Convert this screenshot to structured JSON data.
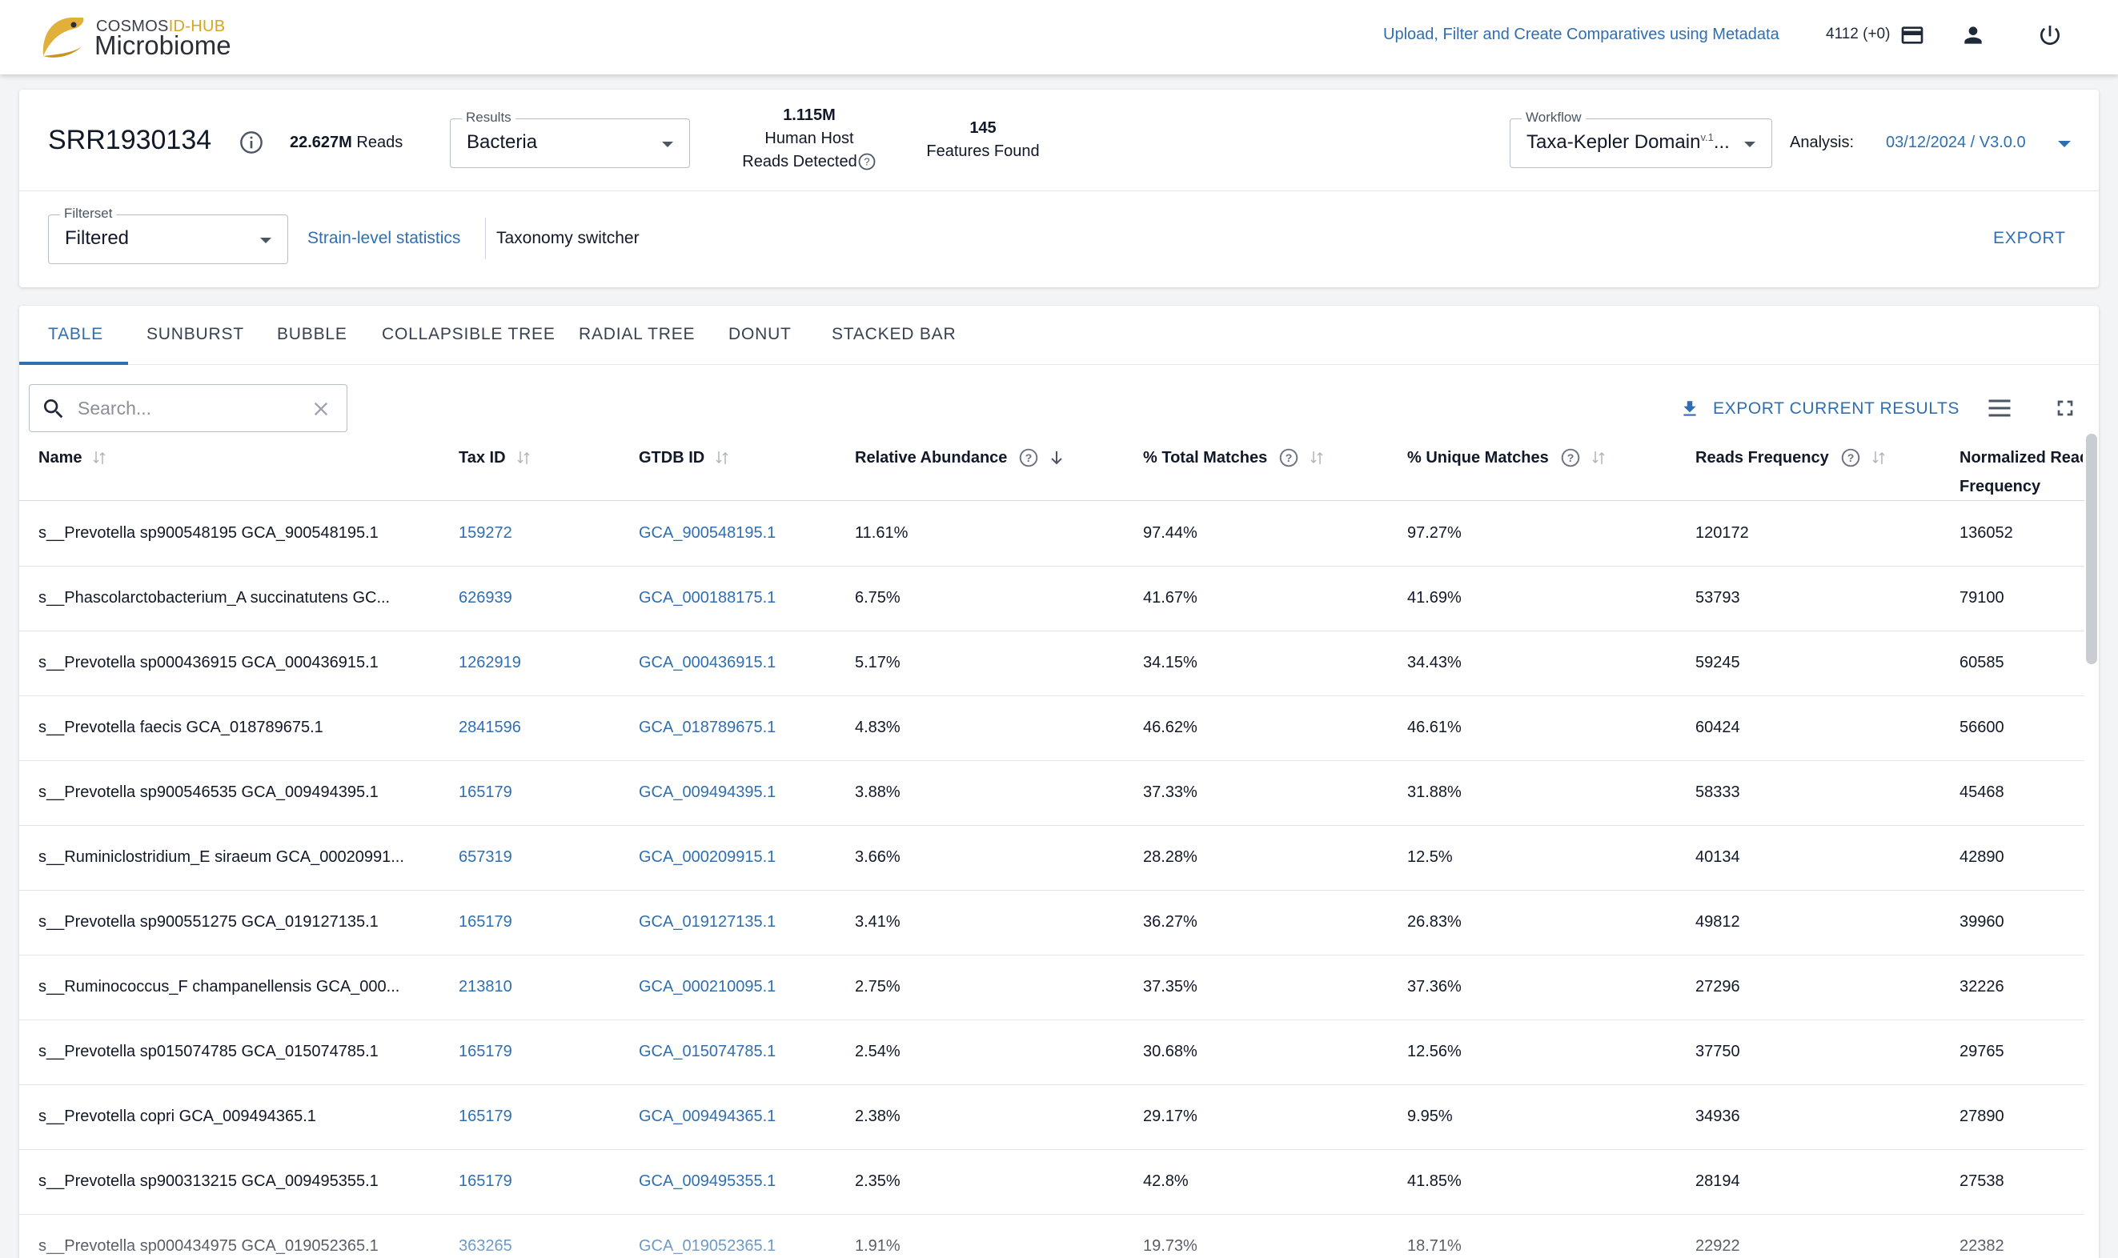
{
  "brand": {
    "top_text_a": "COSMOS",
    "top_text_b": "ID-HUB",
    "bottom_text": "Microbiome",
    "accent": "#d9a521"
  },
  "topbar": {
    "metadata_link": "Upload, Filter and Create Comparatives using Metadata",
    "credits": "4112 (+0)",
    "icons": [
      "credit-card-icon",
      "user-icon",
      "power-icon"
    ]
  },
  "header": {
    "sample_id": "SRR1930134",
    "reads_value": "22.627M",
    "reads_label": "Reads",
    "results": {
      "legend": "Results",
      "value": "Bacteria"
    },
    "human_host": {
      "value": "1.115M",
      "line1": "Human Host",
      "line2": "Reads Detected"
    },
    "features": {
      "value": "145",
      "label": "Features Found"
    },
    "workflow": {
      "legend": "Workflow",
      "value": "Taxa-Kepler Domain",
      "version": "v.1",
      "ellipsis": "..."
    },
    "analysis": {
      "label": "Analysis:",
      "value": "03/12/2024 / V3.0.0"
    },
    "filterset": {
      "legend": "Filterset",
      "value": "Filtered"
    },
    "strain_link": "Strain-level statistics",
    "taxonomy_switcher": "Taxonomy switcher",
    "export": "EXPORT"
  },
  "tabs": [
    "TABLE",
    "SUNBURST",
    "BUBBLE",
    "COLLAPSIBLE TREE",
    "RADIAL TREE",
    "DONUT",
    "STACKED BAR"
  ],
  "active_tab": "TABLE",
  "toolbar": {
    "search_placeholder": "Search...",
    "search_value": "",
    "export_current": "EXPORT CURRENT RESULTS"
  },
  "table": {
    "columns": [
      "Name",
      "Tax ID",
      "GTDB ID",
      "Relative Abundance",
      "% Total Matches",
      "% Unique Matches",
      "Reads Frequency",
      "Normalized Reads",
      "Frequency"
    ],
    "rows": [
      [
        "s__Prevotella sp900548195 GCA_900548195.1",
        "159272",
        "GCA_900548195.1",
        "11.61%",
        "97.44%",
        "97.27%",
        "120172",
        "136052"
      ],
      [
        "s__Phascolarctobacterium_A succinatutens GC...",
        "626939",
        "GCA_000188175.1",
        "6.75%",
        "41.67%",
        "41.69%",
        "53793",
        "79100"
      ],
      [
        "s__Prevotella sp000436915 GCA_000436915.1",
        "1262919",
        "GCA_000436915.1",
        "5.17%",
        "34.15%",
        "34.43%",
        "59245",
        "60585"
      ],
      [
        "s__Prevotella faecis GCA_018789675.1",
        "2841596",
        "GCA_018789675.1",
        "4.83%",
        "46.62%",
        "46.61%",
        "60424",
        "56600"
      ],
      [
        "s__Prevotella sp900546535 GCA_009494395.1",
        "165179",
        "GCA_009494395.1",
        "3.88%",
        "37.33%",
        "31.88%",
        "58333",
        "45468"
      ],
      [
        "s__Ruminiclostridium_E siraeum GCA_00020991...",
        "657319",
        "GCA_000209915.1",
        "3.66%",
        "28.28%",
        "12.5%",
        "40134",
        "42890"
      ],
      [
        "s__Prevotella sp900551275 GCA_019127135.1",
        "165179",
        "GCA_019127135.1",
        "3.41%",
        "36.27%",
        "26.83%",
        "49812",
        "39960"
      ],
      [
        "s__Ruminococcus_F champanellensis GCA_000...",
        "213810",
        "GCA_000210095.1",
        "2.75%",
        "37.35%",
        "37.36%",
        "27296",
        "32226"
      ],
      [
        "s__Prevotella sp015074785 GCA_015074785.1",
        "165179",
        "GCA_015074785.1",
        "2.54%",
        "30.68%",
        "12.56%",
        "37750",
        "29765"
      ],
      [
        "s__Prevotella copri GCA_009494365.1",
        "165179",
        "GCA_009494365.1",
        "2.38%",
        "29.17%",
        "9.95%",
        "34936",
        "27890"
      ],
      [
        "s__Prevotella sp900313215 GCA_009495355.1",
        "165179",
        "GCA_009495355.1",
        "2.35%",
        "42.8%",
        "41.85%",
        "28194",
        "27538"
      ],
      [
        "s__Prevotella sp000434975 GCA_019052365.1",
        "363265",
        "GCA_019052365.1",
        "1.91%",
        "19.73%",
        "18.71%",
        "22922",
        "22382"
      ]
    ]
  },
  "colors": {
    "link": "#2f6fb1",
    "text": "#111827",
    "border": "#b8bec7"
  }
}
